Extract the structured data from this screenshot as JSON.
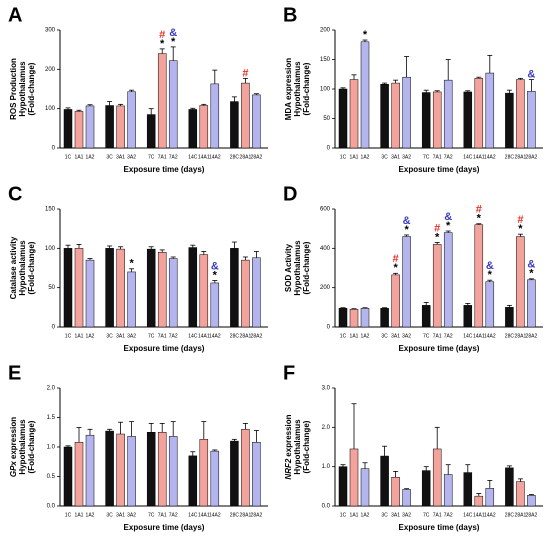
{
  "chart_data": [
    {
      "type": "bar",
      "panel": "A",
      "ylabel": [
        "ROS Production",
        "Hypothalamus",
        "(Fold-change)"
      ],
      "xlabel": "Exposure time (days)",
      "categories": [
        "1C",
        "1A1",
        "1A2",
        "3C",
        "3A1",
        "3A2",
        "7C",
        "7A1",
        "7A2",
        "14C",
        "14A1",
        "14A2",
        "28C",
        "28A1",
        "28A2"
      ],
      "values": [
        98,
        93,
        107,
        108,
        107,
        143,
        85,
        240,
        222,
        98,
        108,
        163,
        118,
        165,
        135
      ],
      "errors": [
        4,
        3,
        3,
        10,
        4,
        4,
        15,
        12,
        35,
        3,
        3,
        35,
        12,
        12,
        3
      ],
      "annotations": [
        null,
        null,
        null,
        null,
        null,
        null,
        null,
        [
          "#",
          "*"
        ],
        [
          "&",
          "*"
        ],
        null,
        null,
        null,
        null,
        [
          "#"
        ],
        null
      ],
      "ylim": [
        0,
        300
      ],
      "yticks": [
        0,
        100,
        200,
        300
      ]
    },
    {
      "type": "bar",
      "panel": "B",
      "ylabel": [
        "MDA expression",
        "Hypothalamus",
        "(Fold-change)"
      ],
      "xlabel": "Exposure time (days)",
      "categories": [
        "1C",
        "1A1",
        "1A2",
        "3C",
        "3A1",
        "3A2",
        "7C",
        "7A1",
        "7A2",
        "14C",
        "14A1",
        "14A2",
        "28C",
        "28A1",
        "28A2"
      ],
      "values": [
        100,
        116,
        180,
        108,
        110,
        120,
        94,
        95,
        115,
        95,
        118,
        127,
        93,
        116,
        96
      ],
      "errors": [
        2,
        8,
        3,
        2,
        5,
        35,
        4,
        2,
        35,
        2,
        2,
        30,
        5,
        2,
        20
      ],
      "annotations": [
        null,
        null,
        [
          "*"
        ],
        null,
        null,
        null,
        null,
        null,
        null,
        null,
        null,
        null,
        null,
        null,
        [
          "&"
        ]
      ],
      "ylim": [
        0,
        200
      ],
      "yticks": [
        0,
        50,
        100,
        150,
        200
      ]
    },
    {
      "type": "bar",
      "panel": "C",
      "ylabel": [
        "Catalase activity",
        "Hypothalamus",
        "(Fold-change)"
      ],
      "xlabel": "Exposure time (days)",
      "categories": [
        "1C",
        "1A1",
        "1A2",
        "3C",
        "3A1",
        "3A2",
        "7C",
        "7A1",
        "7A2",
        "14C",
        "14A1",
        "14A2",
        "28C",
        "28A1",
        "28A2"
      ],
      "values": [
        100,
        100,
        85,
        100,
        99,
        70,
        99,
        95,
        87,
        101,
        92,
        56,
        100,
        85,
        88
      ],
      "errors": [
        4,
        5,
        2,
        3,
        3,
        4,
        3,
        3,
        2,
        3,
        4,
        3,
        8,
        4,
        8
      ],
      "annotations": [
        null,
        null,
        null,
        null,
        null,
        [
          "*"
        ],
        null,
        null,
        null,
        null,
        null,
        [
          "&",
          "*"
        ],
        null,
        null,
        null
      ],
      "ylim": [
        0,
        150
      ],
      "yticks": [
        0,
        50,
        100,
        150
      ]
    },
    {
      "type": "bar",
      "panel": "D",
      "ylabel": [
        "SOD Activity",
        "Hypothalamus",
        "(Fold-change)"
      ],
      "xlabel": "Exposure time (days)",
      "categories": [
        "1C",
        "1A1",
        "1A2",
        "3C",
        "3A1",
        "3A2",
        "7C",
        "7A1",
        "7A2",
        "14C",
        "14A1",
        "14A2",
        "28C",
        "28A1",
        "28A2"
      ],
      "values": [
        95,
        90,
        95,
        95,
        265,
        460,
        110,
        420,
        480,
        110,
        520,
        230,
        100,
        460,
        240
      ],
      "errors": [
        3,
        3,
        3,
        3,
        8,
        8,
        15,
        10,
        8,
        10,
        5,
        8,
        10,
        12,
        5
      ],
      "annotations": [
        null,
        null,
        null,
        null,
        [
          "#",
          "*"
        ],
        [
          "&",
          "*"
        ],
        null,
        [
          "#",
          "*"
        ],
        [
          "&",
          "*"
        ],
        null,
        [
          "#",
          "*"
        ],
        [
          "&",
          "*"
        ],
        null,
        [
          "#",
          "*"
        ],
        [
          "&",
          "*"
        ]
      ],
      "ylim": [
        0,
        600
      ],
      "yticks": [
        0,
        200,
        400,
        600
      ]
    },
    {
      "type": "bar",
      "panel": "E",
      "gene": "GPx",
      "ylabel": [
        "expression",
        "Hypothalamus",
        "(Fold-change)"
      ],
      "xlabel": "Exposure time (days)",
      "categories": [
        "1C",
        "1A1",
        "1A2",
        "3C",
        "3A1",
        "3A2",
        "7C",
        "7A1",
        "7A2",
        "14C",
        "14A1",
        "14A2",
        "28C",
        "28A1",
        "28A2"
      ],
      "values": [
        1.0,
        1.08,
        1.2,
        1.27,
        1.22,
        1.18,
        1.25,
        1.25,
        1.18,
        0.85,
        1.13,
        0.93,
        1.1,
        1.3,
        1.08
      ],
      "errors": [
        0.02,
        0.25,
        0.1,
        0.03,
        0.2,
        0.25,
        0.15,
        0.15,
        0.25,
        0.07,
        0.3,
        0.02,
        0.03,
        0.1,
        0.2
      ],
      "ylim": [
        0,
        2
      ],
      "yticks": [
        {
          "value": 0,
          "label": "0.0"
        },
        {
          "value": 0.5,
          "label": "0.5"
        },
        {
          "value": 1,
          "label": "1.0"
        },
        {
          "value": 1.5,
          "label": "1.5"
        },
        {
          "value": 2,
          "label": "2.0"
        }
      ]
    },
    {
      "type": "bar",
      "panel": "F",
      "gene": "NRF2",
      "ylabel": [
        "expression",
        "Hypothalamus",
        "(Fold-change)"
      ],
      "xlabel": "Exposure time (days)",
      "categories": [
        "1C",
        "1A1",
        "1A2",
        "3C",
        "3A1",
        "3A2",
        "7C",
        "7A1",
        "7A2",
        "14C",
        "14A1",
        "14A2",
        "28C",
        "28A1",
        "28A2"
      ],
      "values": [
        1.0,
        1.45,
        0.95,
        1.27,
        0.73,
        0.42,
        0.9,
        1.45,
        0.8,
        0.85,
        0.25,
        0.45,
        0.97,
        0.62,
        0.27
      ],
      "errors": [
        0.05,
        1.15,
        0.15,
        0.25,
        0.15,
        0.02,
        0.1,
        0.55,
        0.25,
        0.2,
        0.07,
        0.2,
        0.05,
        0.07,
        0.02
      ],
      "ylim": [
        0,
        3
      ],
      "yticks": [
        {
          "value": 0,
          "label": "0.0"
        },
        {
          "value": 1,
          "label": "1.0"
        },
        {
          "value": 2,
          "label": "2.0"
        },
        {
          "value": 3,
          "label": "3.0"
        }
      ]
    }
  ],
  "bar_colors": [
    "#111111",
    "#f4a29c",
    "#b4b4ee"
  ],
  "annotation_colors": {
    "#": "#e5332a",
    "&": "#3a3ac0",
    "*": "#000000"
  }
}
